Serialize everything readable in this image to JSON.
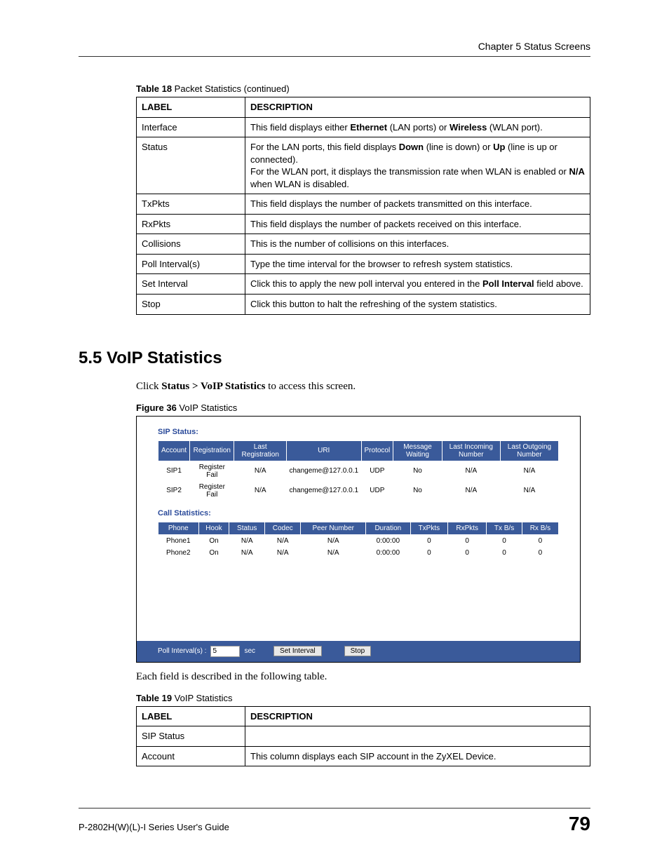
{
  "header": {
    "chapter": "Chapter 5 Status Screens"
  },
  "footer": {
    "guide": "P-2802H(W)(L)-I Series User's Guide",
    "page": "79"
  },
  "table18": {
    "caption_bold": "Table 18",
    "caption_rest": "   Packet Statistics (continued)",
    "head_label": "LABEL",
    "head_desc": "DESCRIPTION",
    "rows": [
      {
        "label": "Interface",
        "html": "This field displays either <b>Ethernet</b> (LAN ports) or <b>Wireless</b> (WLAN port)."
      },
      {
        "label": "Status",
        "html": "For the LAN ports, this field displays <b>Down</b> (line is down) or <b>Up</b> (line is up or connected).<br>For the WLAN port, it displays the transmission rate when WLAN is enabled or <b>N/A</b> when WLAN is disabled."
      },
      {
        "label": "TxPkts",
        "html": "This field displays the number of packets transmitted on this interface."
      },
      {
        "label": "RxPkts",
        "html": "This field displays the number of packets received on this interface."
      },
      {
        "label": "Collisions",
        "html": "This is the number of collisions on this interfaces."
      },
      {
        "label": "Poll Interval(s)",
        "html": "Type the time interval for the browser to refresh system statistics."
      },
      {
        "label": "Set Interval",
        "html": "Click this to apply the new poll interval you entered in the <b>Poll Interval</b> field above."
      },
      {
        "label": "Stop",
        "html": "Click this button to halt the refreshing of the system statistics."
      }
    ]
  },
  "section": {
    "heading": "5.5  VoIP Statistics",
    "intro_pre": "Click ",
    "intro_bold": "Status > VoIP Statistics",
    "intro_post": " to access this screen."
  },
  "figure36": {
    "caption_bold": "Figure 36",
    "caption_rest": "   VoIP Statistics"
  },
  "screenshot": {
    "sip_title": "SIP Status:",
    "sip_headers": [
      "Account",
      "Registration",
      "Last Registration",
      "URI",
      "Protocol",
      "Message Waiting",
      "Last Incoming Number",
      "Last Outgoing Number"
    ],
    "sip_rows": [
      [
        "SIP1",
        "Register Fail",
        "N/A",
        "changeme@127.0.0.1",
        "UDP",
        "No",
        "N/A",
        "N/A"
      ],
      [
        "SIP2",
        "Register Fail",
        "N/A",
        "changeme@127.0.0.1",
        "UDP",
        "No",
        "N/A",
        "N/A"
      ]
    ],
    "call_title": "Call Statistics:",
    "call_headers": [
      "Phone",
      "Hook",
      "Status",
      "Codec",
      "Peer Number",
      "Duration",
      "TxPkts",
      "RxPkts",
      "Tx B/s",
      "Rx B/s"
    ],
    "call_rows": [
      [
        "Phone1",
        "On",
        "N/A",
        "N/A",
        "N/A",
        "0:00:00",
        "0",
        "0",
        "0",
        "0"
      ],
      [
        "Phone2",
        "On",
        "N/A",
        "N/A",
        "N/A",
        "0:00:00",
        "0",
        "0",
        "0",
        "0"
      ]
    ],
    "poll_label": "Poll Interval(s) :",
    "poll_value": "5",
    "poll_unit": "sec",
    "btn_set": "Set Interval",
    "btn_stop": "Stop"
  },
  "post_figure_text": "Each field is described in the following table.",
  "table19": {
    "caption_bold": "Table 19",
    "caption_rest": "   VoIP Statistics",
    "head_label": "LABEL",
    "head_desc": "DESCRIPTION",
    "rows": [
      {
        "label": "SIP Status",
        "html": ""
      },
      {
        "label": "Account",
        "html": "This column displays each SIP account in the ZyXEL Device."
      }
    ]
  }
}
